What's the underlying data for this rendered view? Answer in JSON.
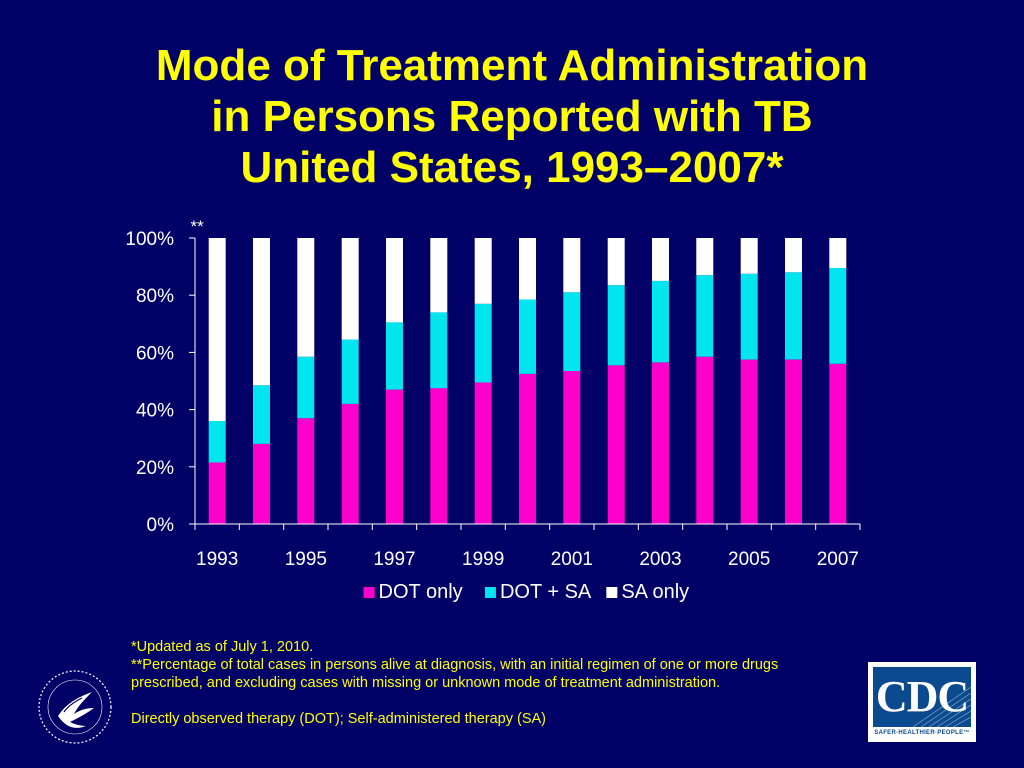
{
  "title_lines": [
    "Mode of Treatment Administration",
    "in Persons Reported with TB",
    "United States, 1993–2007*"
  ],
  "chart_data": {
    "type": "bar",
    "stacked": true,
    "categories": [
      "1993",
      "1994",
      "1995",
      "1996",
      "1997",
      "1998",
      "1999",
      "2000",
      "2001",
      "2002",
      "2003",
      "2004",
      "2005",
      "2006",
      "2007"
    ],
    "x_tick_labels": [
      "1993",
      "1995",
      "1997",
      "1999",
      "2001",
      "2003",
      "2005",
      "2007"
    ],
    "series": [
      {
        "name": "DOT only",
        "color": "#ff00cc",
        "values": [
          21.5,
          28,
          37,
          42,
          47,
          47.5,
          49.5,
          52.5,
          53.5,
          55.5,
          56.5,
          58.5,
          57.5,
          57.5,
          56
        ]
      },
      {
        "name": "DOT + SA",
        "color": "#00e5ee",
        "values": [
          14.5,
          20.5,
          21.5,
          22.5,
          23.5,
          26.5,
          27.5,
          26,
          27.5,
          28,
          28.5,
          28.5,
          30,
          30.5,
          33.5
        ]
      },
      {
        "name": "SA only",
        "color": "#ffffff",
        "values": [
          64,
          51.5,
          41.5,
          35.5,
          29.5,
          26,
          23,
          21.5,
          19,
          16.5,
          15,
          13,
          12.5,
          12,
          10.5
        ]
      }
    ],
    "ylim": [
      0,
      100
    ],
    "y_ticks": [
      0,
      20,
      40,
      60,
      80,
      100
    ],
    "y_tick_labels": [
      "0%",
      "20%",
      "40%",
      "60%",
      "80%",
      "100%"
    ],
    "annotation": "**",
    "legend_position": "bottom",
    "grid": false
  },
  "footnotes": {
    "updated": "*Updated as of July 1, 2010.",
    "note": "**Percentage of total cases in persons alive at diagnosis, with an initial regimen of one or more drugs prescribed, and excluding cases with missing or unknown mode of treatment administration.",
    "abbrev": "Directly observed therapy (DOT); Self-administered therapy (SA)"
  },
  "logos": {
    "cdc_text": "CDC",
    "cdc_tagline": "SAFER·HEALTHIER·PEOPLE™",
    "cdc_color": "#0b4a8f"
  }
}
